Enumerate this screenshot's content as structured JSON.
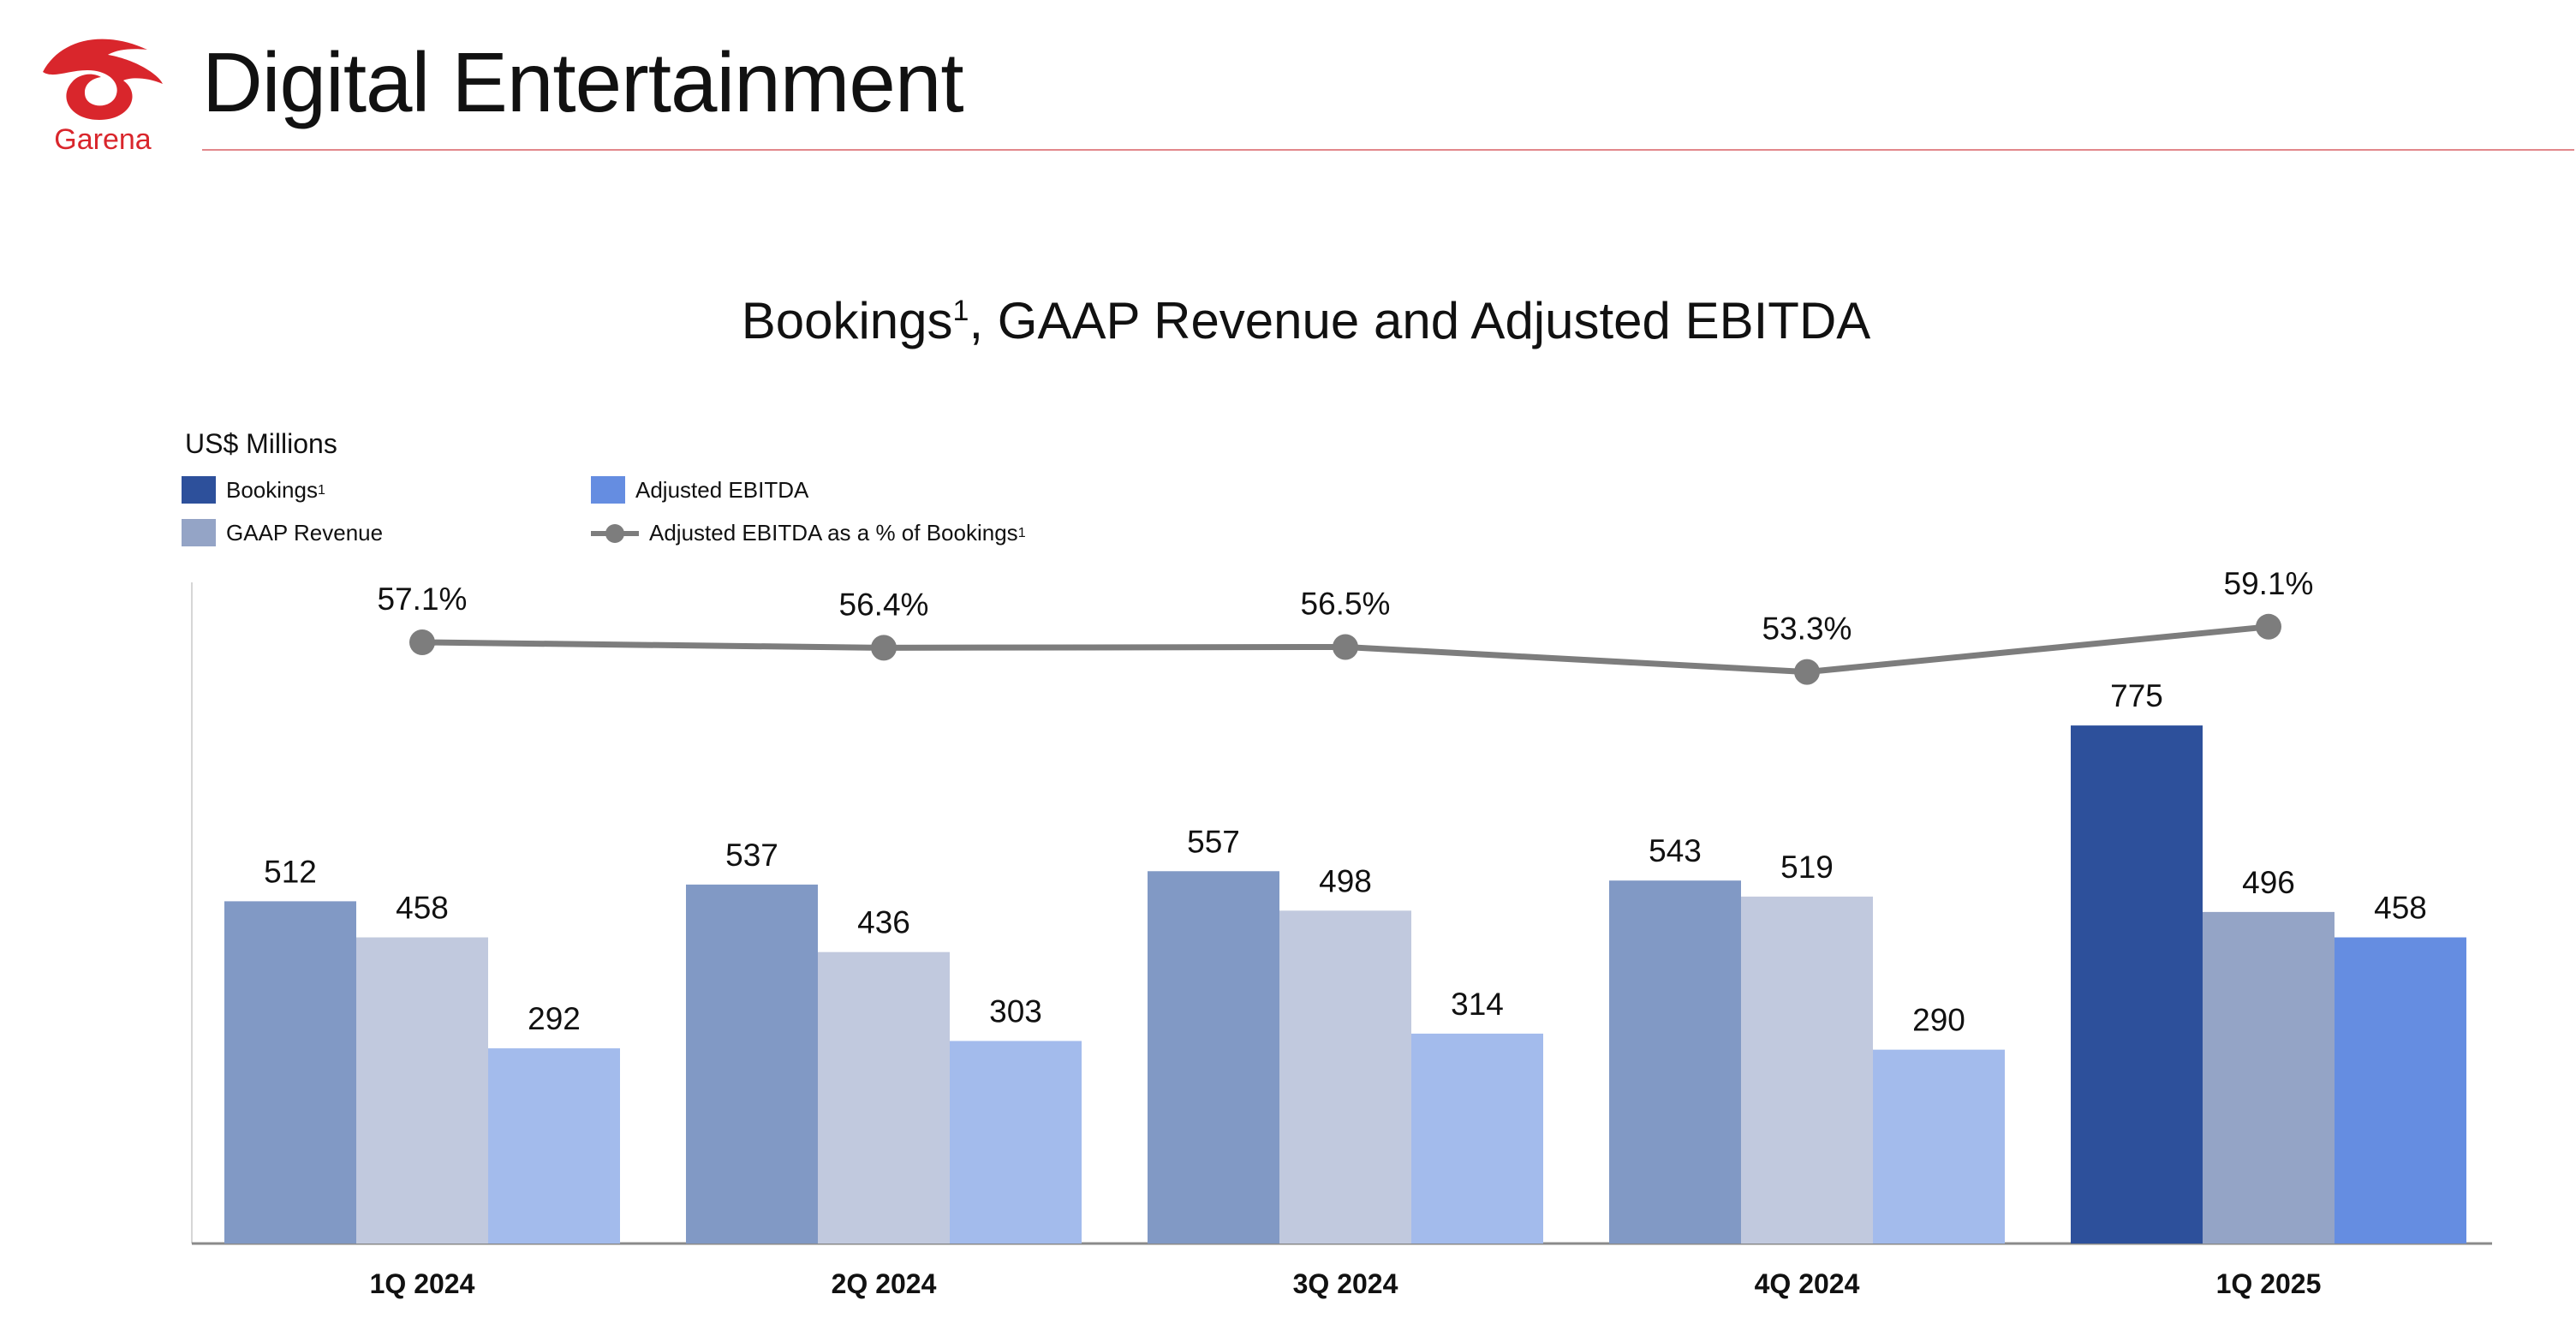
{
  "brand": {
    "name": "Garena",
    "color": "#d9262c"
  },
  "header": {
    "title": "Digital Entertainment"
  },
  "chart_title": {
    "main": "Bookings",
    "footnote": "1",
    "rest": ", GAAP Revenue and Adjusted EBITDA"
  },
  "unit_label": "US$ Millions",
  "legend": {
    "bookings": "Bookings",
    "bookings_fn": "1",
    "gaap": "GAAP Revenue",
    "ebitda": "Adjusted EBITDA",
    "margin": "Adjusted EBITDA as a % of Bookings",
    "margin_fn": "1"
  },
  "colors": {
    "bookings": "#8199c5",
    "gaap": "#c1c9de",
    "ebitda": "#a3bbec",
    "bookings_highlight": "#2d509b",
    "gaap_highlight": "#94a4c6",
    "ebitda_highlight": "#658de1",
    "line": "#7d7d7d",
    "axis": "#8a8a8a"
  },
  "chart_data": {
    "type": "bar",
    "title": "Bookings1, GAAP Revenue and Adjusted EBITDA",
    "ylabel": "US$ Millions",
    "categories": [
      "1Q 2024",
      "2Q 2024",
      "3Q 2024",
      "4Q 2024",
      "1Q 2025"
    ],
    "series": [
      {
        "name": "Bookings",
        "values": [
          512,
          537,
          557,
          543,
          775
        ]
      },
      {
        "name": "GAAP Revenue",
        "values": [
          458,
          436,
          498,
          519,
          496
        ]
      },
      {
        "name": "Adjusted EBITDA",
        "values": [
          292,
          303,
          314,
          290,
          458
        ]
      }
    ],
    "line_series": {
      "name": "Adjusted EBITDA as a % of Bookings",
      "values": [
        57.1,
        56.4,
        56.5,
        53.3,
        59.1
      ],
      "labels": [
        "57.1%",
        "56.4%",
        "56.5%",
        "53.3%",
        "59.1%"
      ]
    },
    "highlight_category": "1Q 2025",
    "ylim": [
      0,
      900
    ]
  }
}
